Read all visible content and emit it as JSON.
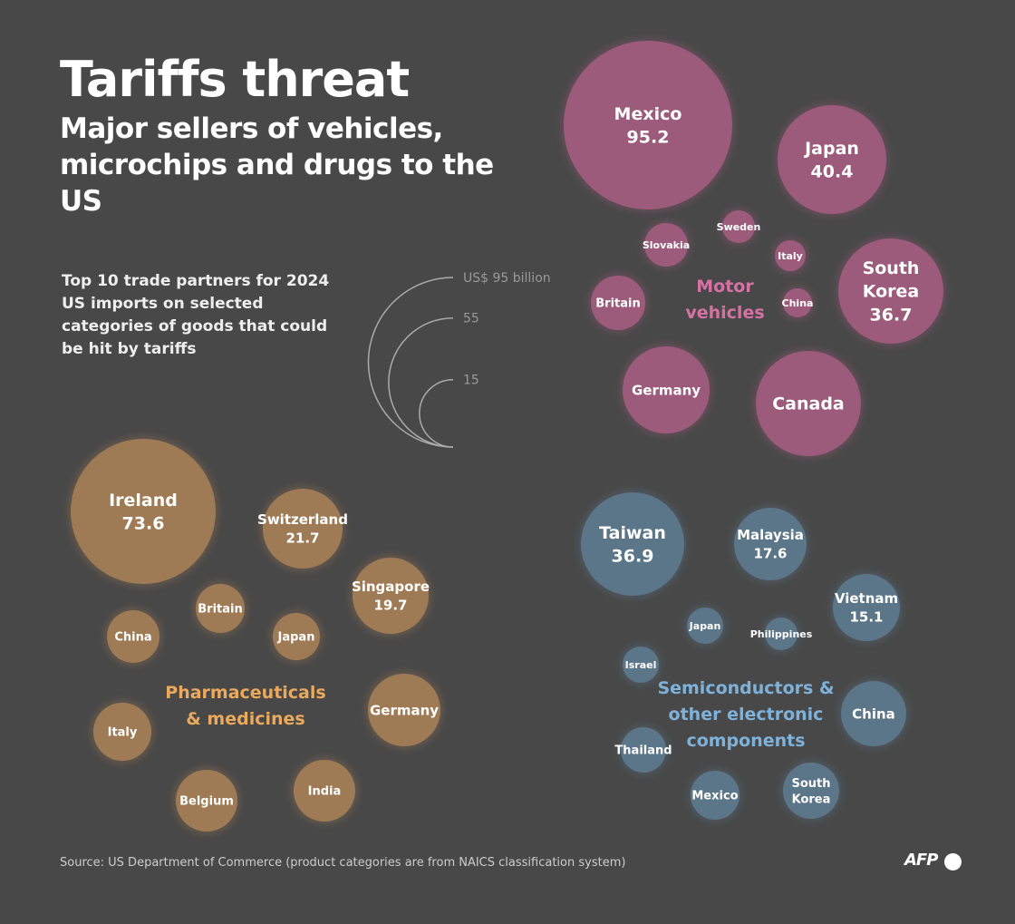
{
  "header": {
    "title": "Tariffs threat",
    "subtitle": "Major sellers of vehicles, microchips and drugs to the US",
    "description": "Top 10 trade partners for 2024 US imports on selected categories of goods that could be hit by tariffs"
  },
  "footer": {
    "source": "Source: US Department of Commerce (product categories are from NAICS classification system)",
    "logo": "AFP"
  },
  "chart_data": {
    "type": "bubble",
    "unit": "US$ billion",
    "size_legend": [
      {
        "value": 95,
        "label": "US$ 95 billion"
      },
      {
        "value": 55,
        "label": "55"
      },
      {
        "value": 15,
        "label": "15"
      }
    ],
    "colors": {
      "Motor vehicles": "#9c5b7a",
      "Pharmaceuticals & medicines": "#9f7b55",
      "Semiconductors & other electronic components": "#5b7688"
    },
    "label_colors": {
      "Motor vehicles": "#d672a3",
      "Pharmaceuticals & medicines": "#eaa95c",
      "Semiconductors & other electronic components": "#7fb2da"
    },
    "groups": [
      {
        "name": "Motor vehicles",
        "partners": [
          {
            "country": "Mexico",
            "value": 95.2
          },
          {
            "country": "Japan",
            "value": 40.4
          },
          {
            "country": "Slovakia"
          },
          {
            "country": "Sweden"
          },
          {
            "country": "Italy"
          },
          {
            "country": "South Korea",
            "value": 36.7
          },
          {
            "country": "Britain"
          },
          {
            "country": "China"
          },
          {
            "country": "Germany"
          },
          {
            "country": "Canada"
          }
        ]
      },
      {
        "name": "Pharmaceuticals & medicines",
        "partners": [
          {
            "country": "Ireland",
            "value": 73.6
          },
          {
            "country": "Switzerland",
            "value": 21.7
          },
          {
            "country": "Singapore",
            "value": 19.7
          },
          {
            "country": "Britain"
          },
          {
            "country": "China"
          },
          {
            "country": "Japan"
          },
          {
            "country": "Germany"
          },
          {
            "country": "Italy"
          },
          {
            "country": "Belgium"
          },
          {
            "country": "India"
          }
        ]
      },
      {
        "name": "Semiconductors & other electronic components",
        "partners": [
          {
            "country": "Taiwan",
            "value": 36.9
          },
          {
            "country": "Malaysia",
            "value": 17.6
          },
          {
            "country": "Vietnam",
            "value": 15.1
          },
          {
            "country": "Japan"
          },
          {
            "country": "Philippines"
          },
          {
            "country": "Israel"
          },
          {
            "country": "China"
          },
          {
            "country": "Thailand"
          },
          {
            "country": "Mexico"
          },
          {
            "country": "South Korea"
          }
        ]
      }
    ]
  }
}
